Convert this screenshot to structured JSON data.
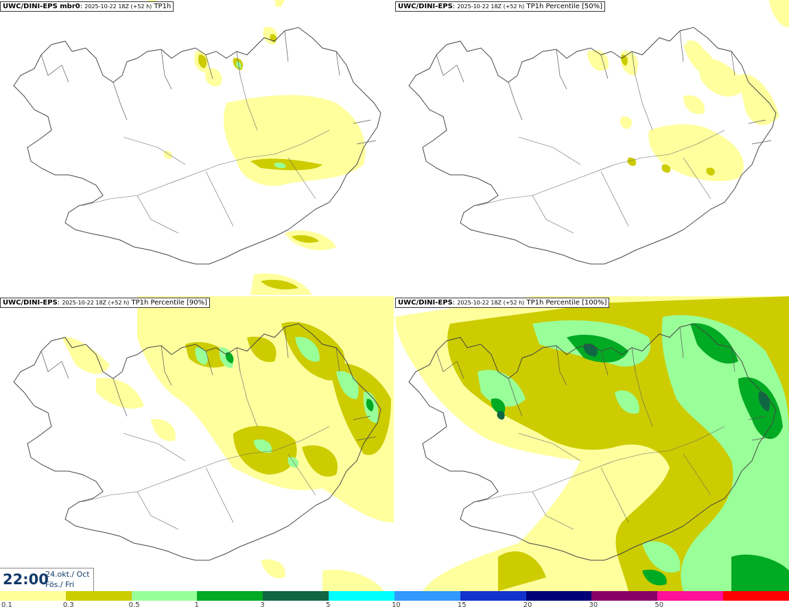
{
  "panels": [
    {
      "model": "UWC/DINI-EPS mbr0",
      "run": "2025-10-22 18Z (+52 h)",
      "product": "TP1h"
    },
    {
      "model": "UWC/DINI-EPS",
      "run": "2025-10-22 18Z (+52 h)",
      "product": "TP1h Percentile [50%]"
    },
    {
      "model": "UWC/DINI-EPS",
      "run": "2025-10-22 18Z (+52 h)",
      "product": "TP1h Percentile [90%]"
    },
    {
      "model": "UWC/DINI-EPS",
      "run": "2025-10-22 18Z (+52 h)",
      "product": "TP1h Percentile [100%]"
    }
  ],
  "valid_time": {
    "time": "22:00",
    "date": "24.okt./ Oct",
    "weekday": "Fös./ Fri"
  },
  "legend": {
    "colors": [
      "#ffff99",
      "#cccc00",
      "#99ff99",
      "#00aa22",
      "#116644",
      "#00ffff",
      "#3399ff",
      "#1133cc",
      "#000077",
      "#880066",
      "#ff1199",
      "#ff0000"
    ],
    "labels": [
      "0.1",
      "0.3",
      "0.5",
      "1",
      "3",
      "5",
      "10",
      "15",
      "20",
      "30",
      "50"
    ]
  }
}
